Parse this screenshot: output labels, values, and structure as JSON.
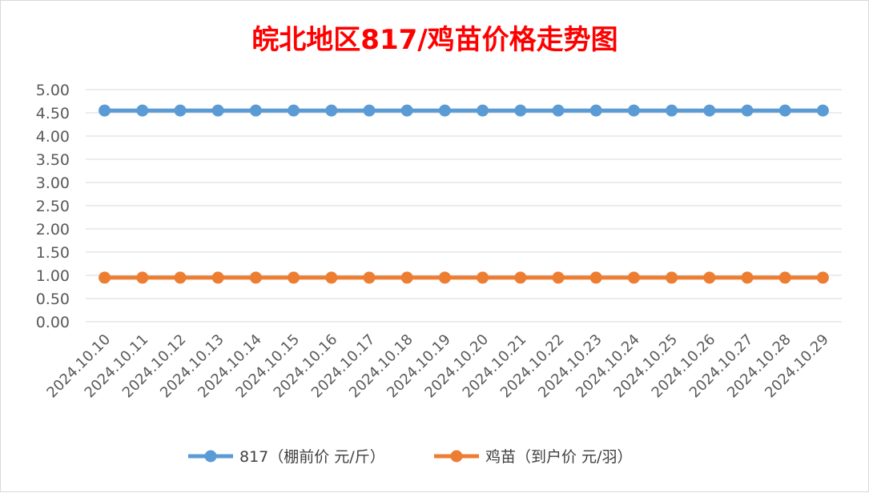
{
  "chart_data": {
    "type": "line",
    "title": "皖北地区817/鸡苗价格走势图",
    "xlabel": "",
    "ylabel": "",
    "ylim": [
      0,
      5
    ],
    "y_ticks": [
      "0.00",
      "0.50",
      "1.00",
      "1.50",
      "2.00",
      "2.50",
      "3.00",
      "3.50",
      "4.00",
      "4.50",
      "5.00"
    ],
    "grid": true,
    "legend_position": "bottom",
    "categories": [
      "2024.10.10",
      "2024.10.11",
      "2024.10.12",
      "2024.10.13",
      "2024.10.14",
      "2024.10.15",
      "2024.10.16",
      "2024.10.17",
      "2024.10.18",
      "2024.10.19",
      "2024.10.20",
      "2024.10.21",
      "2024.10.22",
      "2024.10.23",
      "2024.10.24",
      "2024.10.25",
      "2024.10.26",
      "2024.10.27",
      "2024.10.28",
      "2024.10.29"
    ],
    "series": [
      {
        "name": "817（棚前价 元/斤）",
        "color": "#5b9bd5",
        "values": [
          4.55,
          4.55,
          4.55,
          4.55,
          4.55,
          4.55,
          4.55,
          4.55,
          4.55,
          4.55,
          4.55,
          4.55,
          4.55,
          4.55,
          4.55,
          4.55,
          4.55,
          4.55,
          4.55,
          4.55
        ]
      },
      {
        "name": "鸡苗（到户价 元/羽）",
        "color": "#ed7d31",
        "values": [
          0.95,
          0.95,
          0.95,
          0.95,
          0.95,
          0.95,
          0.95,
          0.95,
          0.95,
          0.95,
          0.95,
          0.95,
          0.95,
          0.95,
          0.95,
          0.95,
          0.95,
          0.95,
          0.95,
          0.95
        ]
      }
    ]
  }
}
